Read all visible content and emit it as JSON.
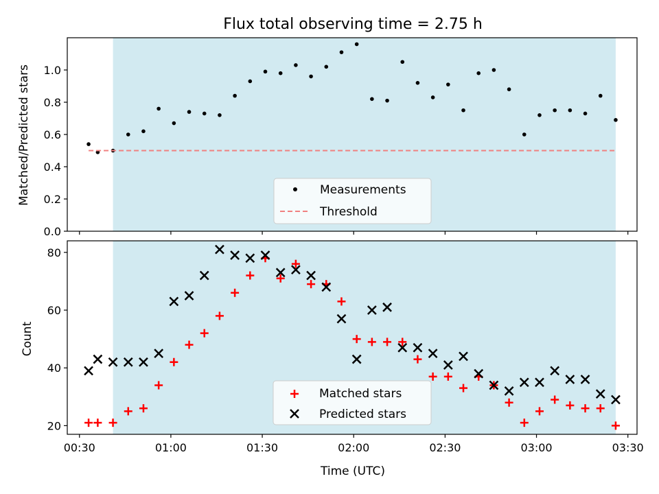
{
  "chart_data": [
    {
      "type": "scatter",
      "title": "Flux total observing time = 2.75 h",
      "xlabel": "",
      "ylabel": "Matched/Predicted stars",
      "xlim": [
        "00:26",
        "03:33"
      ],
      "ylim": [
        0,
        1.2
      ],
      "yticks": [
        "0.0",
        "0.2",
        "0.4",
        "0.6",
        "0.8",
        "1.0"
      ],
      "grid": false,
      "legend_position": "bottom-center",
      "shaded_span": [
        "00:41",
        "03:26"
      ],
      "shade_color": "#add8e6",
      "series": [
        {
          "name": "Measurements",
          "marker": "dot",
          "color": "#000000",
          "x": [
            "00:33",
            "00:36",
            "00:41",
            "00:46",
            "00:51",
            "00:56",
            "01:01",
            "01:06",
            "01:11",
            "01:16",
            "01:21",
            "01:26",
            "01:31",
            "01:36",
            "01:41",
            "01:46",
            "01:51",
            "01:56",
            "02:01",
            "02:06",
            "02:11",
            "02:16",
            "02:21",
            "02:26",
            "02:31",
            "02:36",
            "02:41",
            "02:46",
            "02:51",
            "02:56",
            "03:01",
            "03:06",
            "03:11",
            "03:16",
            "03:21",
            "03:26"
          ],
          "y": [
            0.54,
            0.49,
            0.5,
            0.6,
            0.62,
            0.76,
            0.67,
            0.74,
            0.73,
            0.72,
            0.84,
            0.93,
            0.99,
            0.98,
            1.03,
            0.96,
            1.02,
            1.11,
            1.16,
            0.82,
            0.81,
            1.05,
            0.92,
            0.83,
            0.91,
            0.75,
            0.98,
            1.0,
            0.88,
            0.6,
            0.72,
            0.75,
            0.75,
            0.73,
            0.84,
            0.69
          ]
        },
        {
          "name": "Threshold",
          "style": "dashed",
          "color": "#f08080",
          "x": [
            "00:33",
            "03:26"
          ],
          "y": [
            0.5,
            0.5
          ]
        }
      ]
    },
    {
      "type": "scatter",
      "title": "",
      "xlabel": "Time (UTC)",
      "ylabel": "Count",
      "xlim": [
        "00:26",
        "03:33"
      ],
      "ylim": [
        17,
        84
      ],
      "xticks": [
        "00:30",
        "01:00",
        "01:30",
        "02:00",
        "02:30",
        "03:00",
        "03:30"
      ],
      "yticks": [
        "20",
        "40",
        "60",
        "80"
      ],
      "grid": false,
      "legend_position": "bottom-center",
      "shaded_span": [
        "00:41",
        "03:26"
      ],
      "shade_color": "#add8e6",
      "series": [
        {
          "name": "Matched stars",
          "marker": "plus",
          "color": "#ff0000",
          "x": [
            "00:33",
            "00:36",
            "00:41",
            "00:46",
            "00:51",
            "00:56",
            "01:01",
            "01:06",
            "01:11",
            "01:16",
            "01:21",
            "01:26",
            "01:31",
            "01:36",
            "01:41",
            "01:46",
            "01:51",
            "01:56",
            "02:01",
            "02:06",
            "02:11",
            "02:16",
            "02:21",
            "02:26",
            "02:31",
            "02:36",
            "02:41",
            "02:46",
            "02:51",
            "02:56",
            "03:01",
            "03:06",
            "03:11",
            "03:16",
            "03:21",
            "03:26"
          ],
          "y": [
            21,
            21,
            21,
            25,
            26,
            34,
            42,
            48,
            52,
            58,
            66,
            72,
            78,
            71,
            76,
            69,
            69,
            63,
            50,
            49,
            49,
            49,
            43,
            37,
            37,
            33,
            37,
            34,
            28,
            21,
            25,
            29,
            27,
            26,
            26,
            20
          ]
        },
        {
          "name": "Predicted stars",
          "marker": "x",
          "color": "#000000",
          "x": [
            "00:33",
            "00:36",
            "00:41",
            "00:46",
            "00:51",
            "00:56",
            "01:01",
            "01:06",
            "01:11",
            "01:16",
            "01:21",
            "01:26",
            "01:31",
            "01:36",
            "01:41",
            "01:46",
            "01:51",
            "01:56",
            "02:01",
            "02:06",
            "02:11",
            "02:16",
            "02:21",
            "02:26",
            "02:31",
            "02:36",
            "02:41",
            "02:46",
            "02:51",
            "02:56",
            "03:01",
            "03:06",
            "03:11",
            "03:16",
            "03:21",
            "03:26"
          ],
          "y": [
            39,
            43,
            42,
            42,
            42,
            45,
            63,
            65,
            72,
            81,
            79,
            78,
            79,
            73,
            74,
            72,
            68,
            57,
            43,
            60,
            61,
            47,
            47,
            45,
            41,
            44,
            38,
            34,
            32,
            35,
            35,
            39,
            36,
            36,
            31,
            29
          ]
        }
      ]
    }
  ]
}
